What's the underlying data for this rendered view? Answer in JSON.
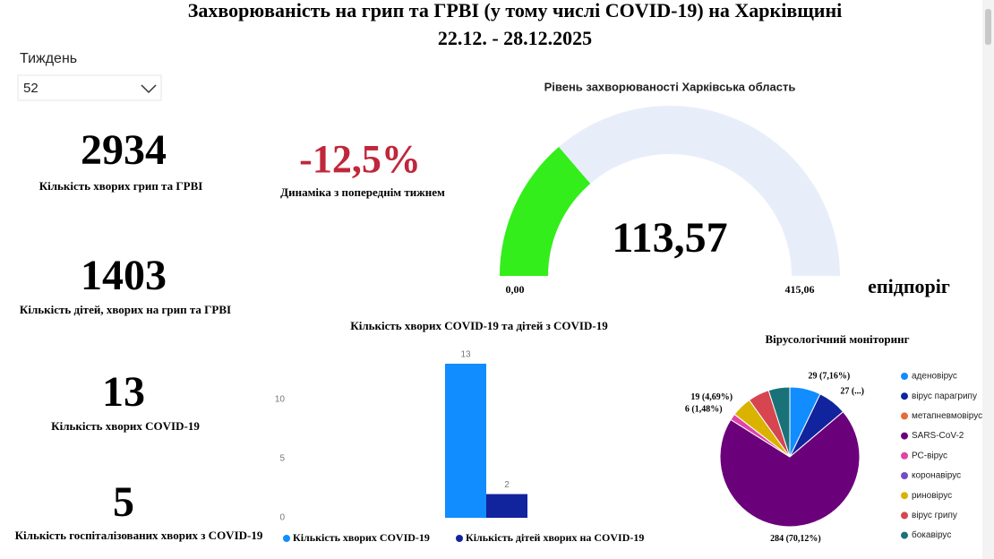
{
  "header": {
    "title": "Захворюваність на грип та ГРВІ (у тому числі COVID-19) на Харківщині",
    "dates": "22.12. - 28.12.2025"
  },
  "filter": {
    "label": "Тиждень",
    "value": "52"
  },
  "kpis": [
    {
      "value": 2934,
      "label": "Кількість хворих грип та ГРВІ"
    },
    {
      "value": 1403,
      "label": "Кількість дітей, хворих на грип та ГРВІ"
    },
    {
      "value": 13,
      "label": "Кількість хворих COVID-19"
    },
    {
      "value": 5,
      "label": "Кількість госпіталізованих хворих з COVID-19"
    }
  ],
  "change": {
    "value": "-12,5%",
    "label": "Динаміка з попереднім тижнем"
  },
  "chart_data": [
    {
      "type": "gauge",
      "title": "Рівень захворюваності Харківська область",
      "value": 113.57,
      "value_label": "113,57",
      "ylim": [
        0,
        415.06
      ],
      "yticks": [
        {
          "value": 0,
          "label": "0,00"
        },
        {
          "value": 415.06,
          "label": "415,06"
        }
      ],
      "annotation": "епідпоріг",
      "color": "#33ee1a",
      "track_color": "#e8eef9"
    },
    {
      "type": "bar",
      "title": "Кількість хворих COVID-19 та дітей з COVID-19",
      "categories": [
        null
      ],
      "series": [
        {
          "name": "Кількість хворих COVID-19",
          "color": "#118dff",
          "values": [
            13
          ]
        },
        {
          "name": "Кількість дітей хворих на COVID-19",
          "color": "#12239e",
          "values": [
            2
          ]
        }
      ],
      "ylim": [
        0,
        13
      ],
      "yticks": [
        0,
        5,
        10
      ]
    },
    {
      "type": "pie",
      "title": "Вірусологічний моніторинг",
      "categories": [
        "аденовірус",
        "вірус парагрипу",
        "метапневмовірус",
        "SARS-CoV-2",
        "РС-вірус",
        "коронавірус",
        "риновірус",
        "вірус грипу",
        "бокавірус"
      ],
      "values": [
        29,
        27,
        0,
        284,
        6,
        0,
        19,
        20,
        20
      ],
      "value_labels": [
        "29 (7,16%)",
        "27 (...)",
        null,
        "284 (70,12%)",
        "6 (1,48%)",
        null,
        "19 (4,69%)",
        null,
        null
      ],
      "colors": [
        "#118dff",
        "#12239e",
        "#e66c37",
        "#6b007b",
        "#e044a7",
        "#744ec2",
        "#d9b300",
        "#d64550",
        "#197278"
      ]
    }
  ]
}
